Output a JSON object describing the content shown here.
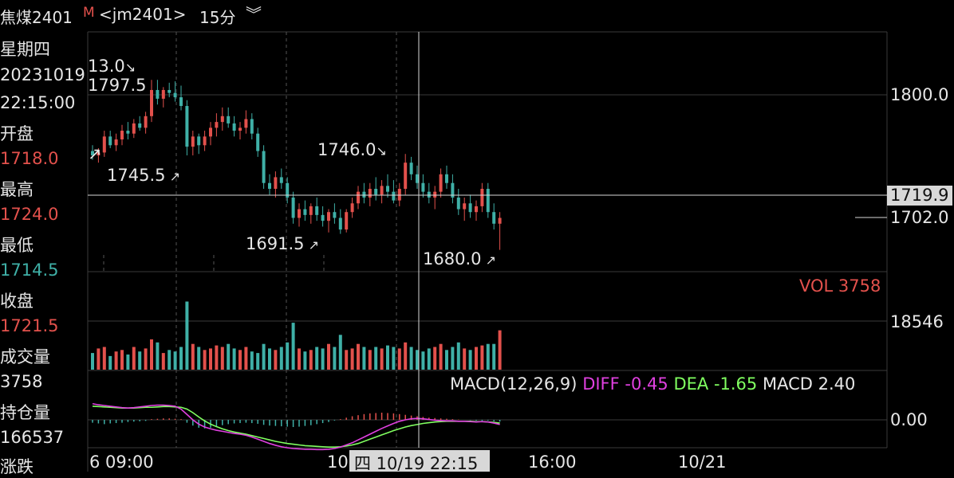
{
  "header": {
    "symbol": "焦煤2401",
    "market_flag": "M",
    "contract": "<jm2401>",
    "period": "15分",
    "dropdown_icon": "chevron-double-down-icon"
  },
  "info_panel": {
    "weekday": "星期四",
    "date": "20231019",
    "time": "22:15:00",
    "open_label": "开盘",
    "open_value": "1718.0",
    "high_label": "最高",
    "high_value": "1724.0",
    "low_label": "最低",
    "low_value": "1714.5",
    "close_label": "收盘",
    "close_value": "1721.5",
    "volume_label": "成交量",
    "volume_value": "3758",
    "open_interest_label": "持仓量",
    "open_interest_value": "166537",
    "change_label": "涨跌"
  },
  "price_axis": {
    "level_1800": "1800.0",
    "crosshair_price": "1719.9",
    "last_price": "1702.0"
  },
  "price_annotations": {
    "high_a_change": "13.0",
    "high_a": "1797.5",
    "low_a": "1745.5",
    "high_b": "1746.0",
    "low_b": "1691.5",
    "low_c": "1680.0"
  },
  "volume_panel": {
    "legend": "VOL 3758",
    "axis_value": "18546"
  },
  "macd_panel": {
    "legend_name": "MACD(12,26,9)",
    "diff_label": "DIFF",
    "diff_value": "-0.45",
    "dea_label": "DEA",
    "dea_value": "-1.65",
    "macd_label": "MACD",
    "macd_value": "2.40",
    "axis_zero": "0.00"
  },
  "time_axis": {
    "t1": "6 09:00",
    "t2": "10",
    "crosshair_time": "四 10/19 22:15",
    "t3": "16:00",
    "t4": "10/21"
  },
  "colors": {
    "up": "#e3514c",
    "down": "#3fb0a7",
    "diff": "#e040e0",
    "dea": "#80ff60",
    "grid": "#3a3a3a",
    "crosshair": "#d8d8d8"
  },
  "chart_data": {
    "type": "candlestick",
    "price_ylim": [
      1665,
      1830
    ],
    "candles": [
      [
        1748,
        1752,
        1742,
        1745
      ],
      [
        1745,
        1750,
        1740,
        1747
      ],
      [
        1747,
        1762,
        1744,
        1758
      ],
      [
        1758,
        1762,
        1750,
        1752
      ],
      [
        1752,
        1760,
        1748,
        1756
      ],
      [
        1756,
        1766,
        1752,
        1762
      ],
      [
        1762,
        1768,
        1756,
        1760
      ],
      [
        1760,
        1770,
        1757,
        1767
      ],
      [
        1767,
        1772,
        1762,
        1764
      ],
      [
        1764,
        1775,
        1760,
        1772
      ],
      [
        1772,
        1797,
        1768,
        1790
      ],
      [
        1790,
        1797,
        1780,
        1784
      ],
      [
        1784,
        1792,
        1778,
        1790
      ],
      [
        1790,
        1795,
        1785,
        1788
      ],
      [
        1788,
        1796,
        1782,
        1785
      ],
      [
        1785,
        1793,
        1776,
        1779
      ],
      [
        1779,
        1783,
        1745,
        1751
      ],
      [
        1751,
        1762,
        1745,
        1758
      ],
      [
        1758,
        1760,
        1746,
        1752
      ],
      [
        1752,
        1762,
        1748,
        1758
      ],
      [
        1758,
        1768,
        1752,
        1764
      ],
      [
        1764,
        1774,
        1758,
        1768
      ],
      [
        1768,
        1778,
        1762,
        1772
      ],
      [
        1772,
        1778,
        1764,
        1767
      ],
      [
        1767,
        1772,
        1758,
        1762
      ],
      [
        1762,
        1768,
        1756,
        1764
      ],
      [
        1764,
        1776,
        1760,
        1770
      ],
      [
        1770,
        1774,
        1756,
        1760
      ],
      [
        1760,
        1764,
        1744,
        1748
      ],
      [
        1748,
        1752,
        1722,
        1726
      ],
      [
        1726,
        1732,
        1718,
        1722
      ],
      [
        1722,
        1734,
        1716,
        1730
      ],
      [
        1730,
        1736,
        1722,
        1726
      ],
      [
        1726,
        1730,
        1712,
        1716
      ],
      [
        1716,
        1720,
        1698,
        1702
      ],
      [
        1702,
        1712,
        1696,
        1708
      ],
      [
        1708,
        1714,
        1700,
        1704
      ],
      [
        1704,
        1712,
        1698,
        1710
      ],
      [
        1710,
        1716,
        1700,
        1704
      ],
      [
        1704,
        1710,
        1696,
        1700
      ],
      [
        1700,
        1708,
        1692,
        1706
      ],
      [
        1706,
        1712,
        1698,
        1702
      ],
      [
        1702,
        1708,
        1691,
        1694
      ],
      [
        1694,
        1708,
        1692,
        1706
      ],
      [
        1706,
        1716,
        1702,
        1712
      ],
      [
        1712,
        1724,
        1708,
        1720
      ],
      [
        1720,
        1726,
        1712,
        1716
      ],
      [
        1716,
        1726,
        1710,
        1722
      ],
      [
        1722,
        1730,
        1714,
        1718
      ],
      [
        1718,
        1728,
        1712,
        1724
      ],
      [
        1724,
        1732,
        1716,
        1720
      ],
      [
        1720,
        1728,
        1712,
        1714
      ],
      [
        1714,
        1726,
        1710,
        1722
      ],
      [
        1722,
        1746,
        1718,
        1740
      ],
      [
        1740,
        1744,
        1728,
        1732
      ],
      [
        1732,
        1738,
        1722,
        1726
      ],
      [
        1726,
        1732,
        1716,
        1720
      ],
      [
        1720,
        1726,
        1712,
        1716
      ],
      [
        1716,
        1724,
        1708,
        1720
      ],
      [
        1720,
        1736,
        1716,
        1732
      ],
      [
        1732,
        1738,
        1722,
        1726
      ],
      [
        1726,
        1732,
        1712,
        1716
      ],
      [
        1716,
        1722,
        1704,
        1708
      ],
      [
        1708,
        1716,
        1700,
        1712
      ],
      [
        1712,
        1718,
        1702,
        1706
      ],
      [
        1706,
        1714,
        1700,
        1710
      ],
      [
        1710,
        1726,
        1706,
        1722
      ],
      [
        1722,
        1726,
        1702,
        1706
      ],
      [
        1706,
        1712,
        1694,
        1698
      ],
      [
        1698,
        1706,
        1680,
        1702
      ]
    ],
    "volumes": [
      22,
      28,
      30,
      18,
      24,
      26,
      20,
      30,
      24,
      28,
      40,
      36,
      22,
      26,
      24,
      30,
      90,
      34,
      30,
      26,
      28,
      32,
      30,
      34,
      28,
      26,
      30,
      24,
      22,
      34,
      28,
      26,
      30,
      36,
      62,
      28,
      24,
      26,
      30,
      28,
      34,
      30,
      46,
      26,
      28,
      34,
      30,
      26,
      30,
      28,
      32,
      30,
      28,
      36,
      30,
      26,
      24,
      28,
      30,
      34,
      26,
      30,
      36,
      28,
      26,
      30,
      32,
      34,
      34,
      52
    ],
    "macd_bars": [
      -0.8,
      -1.0,
      -1.2,
      -1.0,
      -0.9,
      -0.8,
      -0.6,
      -0.5,
      -0.4,
      -0.3,
      0.2,
      0.3,
      0.4,
      0.4,
      0.3,
      0.2,
      -0.8,
      -1.6,
      -2.2,
      -2.4,
      -2.2,
      -1.8,
      -1.5,
      -1.2,
      -1.0,
      -0.9,
      -0.8,
      -0.9,
      -1.1,
      -1.4,
      -1.6,
      -1.7,
      -1.8,
      -1.9,
      -2.0,
      -1.9,
      -1.7,
      -1.5,
      -1.2,
      -0.9,
      -0.6,
      -0.2,
      0.2,
      0.6,
      1.0,
      1.3,
      1.6,
      1.8,
      1.9,
      2.0,
      1.9,
      1.8,
      1.6,
      1.4,
      1.2,
      1.0,
      0.8,
      0.6,
      0.5,
      0.4,
      0.3,
      0.2,
      0.1,
      0.0,
      -0.1,
      -0.2,
      -0.3,
      -0.2,
      -0.4,
      -0.5
    ],
    "diff_line": [
      4.5,
      4.2,
      4.0,
      3.8,
      3.6,
      3.4,
      3.3,
      3.4,
      3.6,
      3.8,
      4.0,
      4.1,
      4.1,
      4.0,
      3.8,
      3.0,
      1.5,
      0.0,
      -1.2,
      -2.0,
      -2.5,
      -2.9,
      -3.2,
      -3.5,
      -3.8,
      -4.0,
      -4.3,
      -4.8,
      -5.4,
      -6.0,
      -6.6,
      -7.1,
      -7.5,
      -7.8,
      -8.0,
      -8.1,
      -8.2,
      -8.2,
      -8.3,
      -8.3,
      -8.2,
      -8.0,
      -7.6,
      -7.0,
      -6.4,
      -5.6,
      -4.8,
      -4.0,
      -3.2,
      -2.4,
      -1.7,
      -1.0,
      -0.4,
      0.0,
      0.3,
      0.4,
      0.3,
      0.1,
      -0.1,
      -0.2,
      -0.3,
      -0.3,
      -0.4,
      -0.4,
      -0.5,
      -0.6,
      -0.5,
      -0.6,
      -0.9,
      -1.3
    ],
    "dea_line": [
      3.8,
      3.7,
      3.6,
      3.5,
      3.4,
      3.3,
      3.3,
      3.3,
      3.4,
      3.5,
      3.5,
      3.6,
      3.7,
      3.7,
      3.6,
      3.5,
      3.0,
      2.0,
      0.8,
      -0.3,
      -1.2,
      -1.9,
      -2.5,
      -3.0,
      -3.4,
      -3.7,
      -4.0,
      -4.4,
      -4.8,
      -5.2,
      -5.6,
      -6.0,
      -6.3,
      -6.6,
      -6.8,
      -7.0,
      -7.2,
      -7.3,
      -7.4,
      -7.5,
      -7.6,
      -7.6,
      -7.5,
      -7.3,
      -7.0,
      -6.6,
      -6.0,
      -5.4,
      -4.8,
      -4.2,
      -3.6,
      -3.0,
      -2.5,
      -2.0,
      -1.6,
      -1.3,
      -1.0,
      -0.8,
      -0.6,
      -0.5,
      -0.4,
      -0.4,
      -0.4,
      -0.4,
      -0.4,
      -0.5,
      -0.5,
      -0.6,
      -0.7,
      -0.9
    ]
  }
}
